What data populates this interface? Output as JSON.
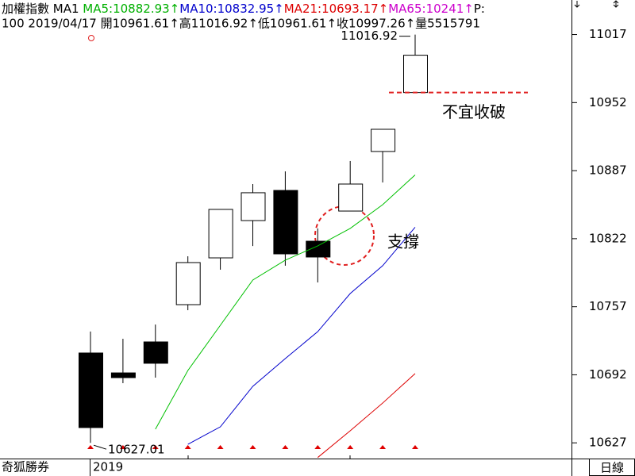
{
  "chart_data": {
    "type": "candlestick",
    "header_line1": [
      "加權指數 MA1 ",
      "MA5:10882.93↑",
      "MA10:10832.95↑",
      "MA21:10693.17↑",
      "MA65:10241↑",
      "P:"
    ],
    "header_line1_colors": [
      "#000000",
      "#00b000",
      "#0000cc",
      "#dd0000",
      "#cc00cc",
      "#000000"
    ],
    "header_line2": "100 2019/04/17 開10961.61↑高11016.92↑低10961.61↑收10997.26↑量5515791",
    "categories": [
      null,
      null,
      null,
      null,
      null,
      null,
      null,
      null,
      null,
      null,
      null
    ],
    "open": [
      10712.8,
      10693.8,
      10723.4,
      10759,
      10803.7,
      10839.3,
      10868.1,
      10819.6,
      10848.4,
      10905.3,
      10961.61
    ],
    "high": [
      10733.3,
      10726.4,
      10740,
      10805.2,
      10850,
      10874.2,
      10886.3,
      10831.8,
      10896.2,
      10926.5,
      11016.92
    ],
    "low": [
      10627.01,
      10684,
      10689.3,
      10753.7,
      10792.4,
      10815,
      10796.2,
      10780.2,
      10848.4,
      10875.7,
      10961.61
    ],
    "close": [
      10641.6,
      10689.3,
      10703,
      10799.2,
      10850,
      10865.9,
      10807.5,
      10804.5,
      10874.2,
      10926.5,
      10997.26
    ],
    "ma_series": [
      {
        "name": "MA5",
        "color": "#00c000",
        "values": [
          null,
          null,
          10640,
          10696.1,
          10739.3,
          10782.5,
          10801.5,
          10815.1,
          10831.8,
          10854.5,
          10882.93
        ]
      },
      {
        "name": "MA10",
        "color": "#0000cc",
        "values": [
          null,
          null,
          null,
          10625.6,
          10642.3,
          10681,
          10707.5,
          10733.2,
          10769.6,
          10796.2,
          10832.95
        ]
      },
      {
        "name": "MA21",
        "color": "#dd0000",
        "values": [
          null,
          null,
          null,
          null,
          null,
          null,
          null,
          10613,
          10638.5,
          10665,
          10693.17
        ]
      }
    ],
    "ylim": [
      10612,
      11050
    ],
    "yticks": [
      10627,
      10692,
      10757,
      10822,
      10887,
      10952,
      11017
    ],
    "annotations": [
      {
        "text": "不宜收破",
        "value": 10961.61,
        "color": "#e02020"
      },
      {
        "text": "支撐",
        "color": "#e02020"
      }
    ],
    "footer": {
      "left": "奇狐勝券",
      "date": "2019",
      "period": "日線"
    }
  }
}
